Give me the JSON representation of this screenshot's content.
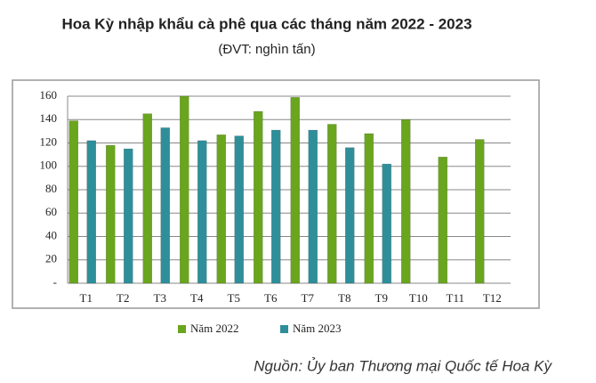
{
  "chart_data": {
    "type": "bar",
    "title": "Hoa Kỳ nhập khẩu cà phê qua các tháng năm 2022 - 2023",
    "subtitle": "(ĐVT: nghìn tấn)",
    "source": "Nguồn: Ủy ban Thương mại Quốc tế Hoa Kỳ",
    "categories": [
      "T1",
      "T2",
      "T3",
      "T4",
      "T5",
      "T6",
      "T7",
      "T8",
      "T9",
      "T10",
      "T11",
      "T12"
    ],
    "series": [
      {
        "name": "Năm 2022",
        "color": "#6aa51e",
        "values": [
          139,
          118,
          145,
          160,
          127,
          147,
          159,
          136,
          128,
          140,
          108,
          123
        ]
      },
      {
        "name": "Năm 2023",
        "color": "#2e8f9a",
        "values": [
          122,
          115,
          133,
          122,
          126,
          131,
          131,
          116,
          102,
          null,
          null,
          null
        ]
      }
    ],
    "ylim": [
      0,
      160
    ],
    "yticks": [
      {
        "value": 0,
        "label": "-"
      },
      20,
      40,
      60,
      80,
      100,
      120,
      140,
      160
    ],
    "grid": true,
    "legend": "bottom"
  }
}
